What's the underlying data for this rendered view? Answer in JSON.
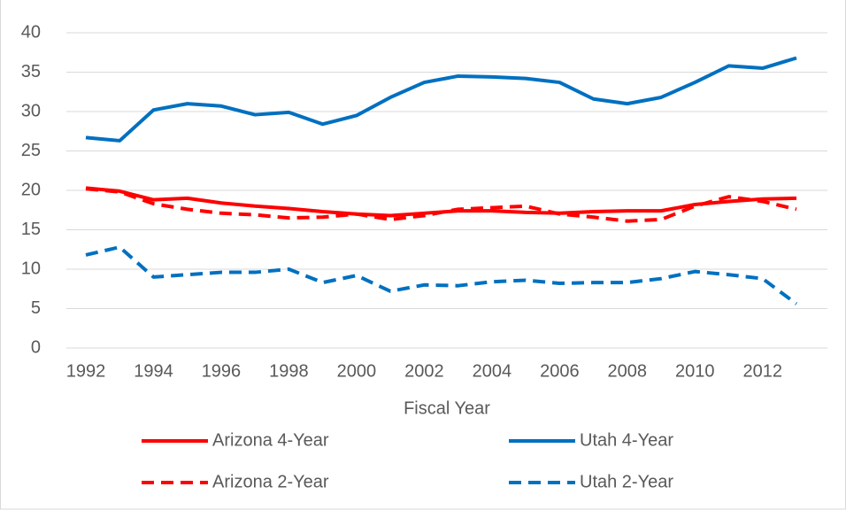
{
  "chart_data": {
    "type": "line",
    "x": [
      1992,
      1993,
      1994,
      1995,
      1996,
      1997,
      1998,
      1999,
      2000,
      2001,
      2002,
      2003,
      2004,
      2005,
      2006,
      2007,
      2008,
      2009,
      2010,
      2011,
      2012,
      2013
    ],
    "xlabel": "Fiscal Year",
    "series": [
      {
        "name": "Arizona 4-Year",
        "color": "#ff0000",
        "style": "solid",
        "values": [
          20.3,
          19.9,
          18.8,
          19.0,
          18.4,
          18.0,
          17.7,
          17.3,
          17.0,
          16.8,
          17.1,
          17.4,
          17.4,
          17.2,
          17.1,
          17.3,
          17.4,
          17.4,
          18.2,
          18.6,
          18.9,
          19.0
        ]
      },
      {
        "name": "Utah 4-Year",
        "color": "#0070c0",
        "style": "solid",
        "values": [
          26.7,
          26.3,
          30.2,
          31.0,
          30.7,
          29.6,
          29.9,
          28.4,
          29.5,
          31.8,
          33.7,
          34.5,
          34.4,
          34.2,
          33.7,
          31.6,
          31.0,
          31.8,
          33.7,
          35.8,
          35.5,
          36.8
        ]
      },
      {
        "name": "Arizona 2-Year",
        "color": "#ff0000",
        "style": "dashed",
        "values": [
          20.2,
          19.8,
          18.3,
          17.6,
          17.1,
          16.9,
          16.5,
          16.6,
          17.0,
          16.3,
          16.8,
          17.6,
          17.8,
          18.0,
          17.0,
          16.6,
          16.1,
          16.3,
          18.0,
          19.2,
          18.6,
          17.6
        ]
      },
      {
        "name": "Utah 2-Year",
        "color": "#0070c0",
        "style": "dashed",
        "values": [
          11.8,
          12.8,
          9.0,
          9.3,
          9.6,
          9.6,
          10.0,
          8.3,
          9.2,
          7.2,
          8.0,
          7.9,
          8.4,
          8.6,
          8.2,
          8.3,
          8.3,
          8.8,
          9.7,
          9.3,
          8.8,
          5.6
        ]
      }
    ],
    "xlim": [
      1992,
      2013
    ],
    "xticks": [
      1992,
      1994,
      1996,
      1998,
      2000,
      2002,
      2004,
      2006,
      2008,
      2010,
      2012
    ],
    "ylim": [
      0,
      40
    ],
    "yticks": [
      0,
      5,
      10,
      15,
      20,
      25,
      30,
      35,
      40
    ],
    "grid": true,
    "legend": "bottom"
  }
}
